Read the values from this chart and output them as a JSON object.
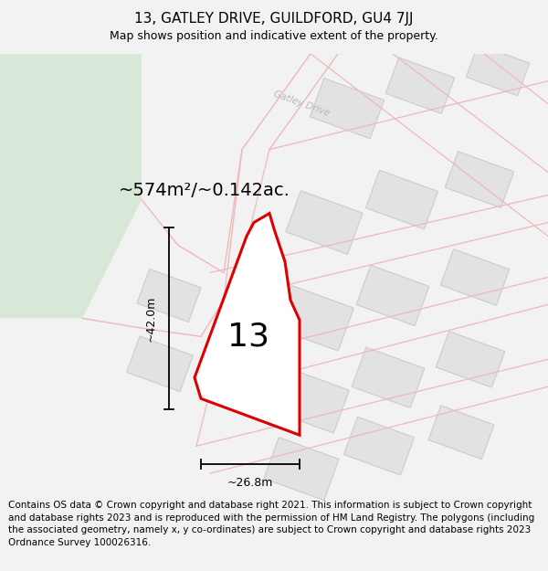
{
  "title": "13, GATLEY DRIVE, GUILDFORD, GU4 7JJ",
  "subtitle": "Map shows position and indicative extent of the property.",
  "footer": "Contains OS data © Crown copyright and database right 2021. This information is subject to Crown copyright and database rights 2023 and is reproduced with the permission of HM Land Registry. The polygons (including the associated geometry, namely x, y co-ordinates) are subject to Crown copyright and database rights 2023 Ordnance Survey 100026316.",
  "area_label": "~574m²/~0.142ac.",
  "number_label": "13",
  "dim_height": "~42.0m",
  "dim_width": "~26.8m",
  "bg_color": "#f2f2f2",
  "map_bg": "#ffffff",
  "green_color": "#d8e8d8",
  "road_line_color": "#f0b8b8",
  "building_color": "#e2e2e2",
  "building_edge": "#cccccc",
  "plot_edge_color": "#dd0000",
  "road_label_color": "#b8b8b8",
  "title_fontsize": 11,
  "subtitle_fontsize": 9,
  "footer_fontsize": 7.5,
  "area_fontsize": 14,
  "number_fontsize": 26,
  "dim_fontsize": 9,
  "road_label": "Gatley Drive"
}
